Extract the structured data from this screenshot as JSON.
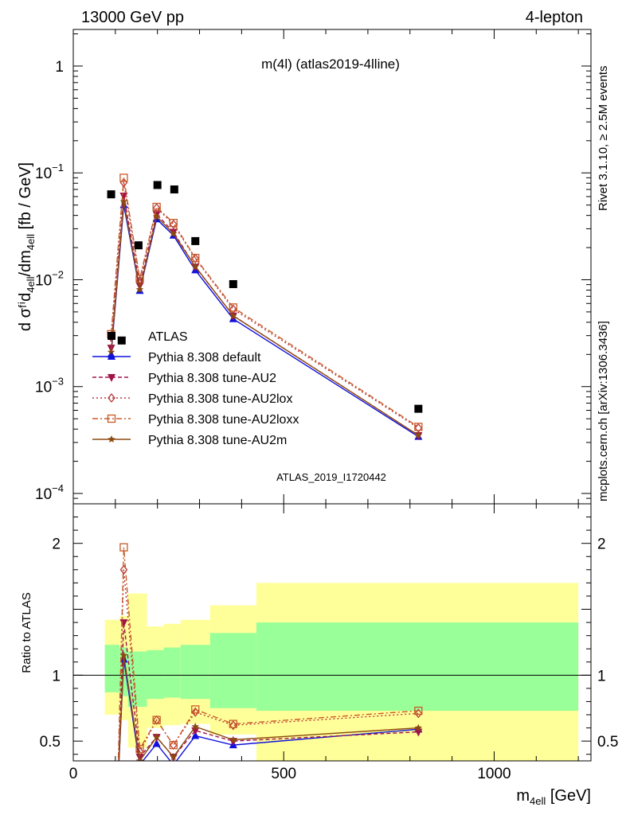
{
  "header": {
    "left": "13000 GeV pp",
    "right": "4-lepton"
  },
  "side_text": {
    "top": "Rivet 3.1.10, ≥ 2.5M events",
    "bottom": "mcplots.cern.ch [arXiv:1306.3436]"
  },
  "plot_title": "m(4l) (atlas2019-4lline)",
  "watermark": "ATLAS_2019_I1720442",
  "colors": {
    "data": "#000000",
    "default": "#1010dd",
    "AU2": "#a0134a",
    "AU2lox": "#b83a3a",
    "AU2loxx": "#c85a28",
    "AU2m": "#8b4a10",
    "band_inner": "#99ff99",
    "band_outer": "#ffff99"
  },
  "chart_data": {
    "type": "line",
    "x_label_main": "m",
    "x_label_sub": "4ell",
    "x_label_unit": "[GeV]",
    "xlim": [
      0,
      1230
    ],
    "x_ticks": [
      0,
      500,
      1000
    ],
    "top_panel": {
      "y_scale": "log",
      "ylim": [
        8e-05,
        2.2
      ],
      "y_label": "d σᶠⁱd",
      "y_ticks": [
        {
          "v": 1,
          "mant": "1",
          "exp": ""
        },
        {
          "v": 0.1,
          "mant": "10",
          "exp": "−1"
        },
        {
          "v": 0.01,
          "mant": "10",
          "exp": "−2"
        },
        {
          "v": 0.001,
          "mant": "10",
          "exp": "−3"
        },
        {
          "v": 0.0001,
          "mant": "10",
          "exp": "−4"
        }
      ],
      "data": {
        "name": "ATLAS",
        "x": [
          90,
          115,
          155,
          200,
          240,
          290,
          380,
          820
        ],
        "y": [
          0.063,
          0.0027,
          0.021,
          0.077,
          0.07,
          0.023,
          0.0091,
          0.00062
        ]
      },
      "series": [
        {
          "name": "Pythia 8.308 default",
          "key": "default",
          "marker": "triangle-up",
          "dash": "",
          "x": [
            90,
            120,
            158,
            198,
            238,
            290,
            380,
            820
          ],
          "y": [
            0.002,
            0.05,
            0.0079,
            0.037,
            0.026,
            0.0123,
            0.0043,
            0.00034
          ]
        },
        {
          "name": "Pythia 8.308 tune-AU2",
          "key": "AU2",
          "marker": "triangle-down",
          "dash": "5,3",
          "x": [
            90,
            120,
            158,
            198,
            238,
            290,
            380,
            820
          ],
          "y": [
            0.0023,
            0.061,
            0.0088,
            0.041,
            0.028,
            0.0132,
            0.0046,
            0.00035
          ]
        },
        {
          "name": "Pythia 8.308 tune-AU2lox",
          "key": "AU2lox",
          "marker": "diamond",
          "dash": "2,3",
          "x": [
            90,
            120,
            158,
            198,
            238,
            290,
            380,
            820
          ],
          "y": [
            0.0029,
            0.081,
            0.0098,
            0.047,
            0.033,
            0.0158,
            0.0053,
            0.00041
          ]
        },
        {
          "name": "Pythia 8.308 tune-AU2loxx",
          "key": "AU2loxx",
          "marker": "square",
          "dash": "7,3,2,3",
          "x": [
            90,
            120,
            158,
            198,
            238,
            290,
            380,
            820
          ],
          "y": [
            0.0031,
            0.09,
            0.0102,
            0.048,
            0.034,
            0.016,
            0.0055,
            0.00042
          ]
        },
        {
          "name": "Pythia 8.308 tune-AU2m",
          "key": "AU2m",
          "marker": "star",
          "dash": "",
          "x": [
            90,
            120,
            158,
            198,
            238,
            290,
            380,
            820
          ],
          "y": [
            0.0021,
            0.054,
            0.0081,
            0.039,
            0.027,
            0.0133,
            0.0046,
            0.00035
          ]
        }
      ]
    },
    "ratio_panel": {
      "y_label": "Ratio to ATLAS",
      "ylim": [
        0.35,
        2.3
      ],
      "y_ticks": [
        0.5,
        1,
        2
      ],
      "band_edges": [
        75,
        110,
        130,
        175,
        215,
        255,
        325,
        435,
        1200
      ],
      "band_inner": [
        [
          0.87,
          1.23
        ],
        [
          0.84,
          1.21
        ],
        [
          0.76,
          1.18
        ],
        [
          0.82,
          1.19
        ],
        [
          0.83,
          1.21
        ],
        [
          0.82,
          1.23
        ],
        [
          0.75,
          1.32
        ],
        [
          0.73,
          1.4
        ]
      ],
      "band_outer": [
        [
          0.7,
          1.42
        ],
        [
          0.66,
          1.45
        ],
        [
          0.45,
          1.62
        ],
        [
          0.6,
          1.37
        ],
        [
          0.62,
          1.39
        ],
        [
          0.63,
          1.42
        ],
        [
          0.55,
          1.53
        ],
        [
          0.2,
          1.7
        ]
      ],
      "series": [
        {
          "key": "default",
          "x": [
            105,
            120,
            158,
            198,
            238,
            290,
            380,
            820
          ],
          "y": [
            0.1,
            1.12,
            0.32,
            0.48,
            0.32,
            0.54,
            0.47,
            0.59
          ]
        },
        {
          "key": "AU2",
          "x": [
            105,
            120,
            158,
            198,
            238,
            290,
            380,
            820
          ],
          "y": [
            0.1,
            1.4,
            0.38,
            0.53,
            0.38,
            0.58,
            0.5,
            0.57
          ]
        },
        {
          "key": "AU2lox",
          "x": [
            105,
            120,
            158,
            198,
            238,
            290,
            380,
            820
          ],
          "y": [
            0.1,
            1.8,
            0.42,
            0.66,
            0.47,
            0.72,
            0.62,
            0.71
          ]
        },
        {
          "key": "AU2loxx",
          "x": [
            105,
            120,
            158,
            198,
            238,
            290,
            380,
            820
          ],
          "y": [
            0.1,
            1.97,
            0.44,
            0.66,
            0.47,
            0.74,
            0.63,
            0.73
          ]
        },
        {
          "key": "AU2m",
          "x": [
            105,
            120,
            158,
            198,
            238,
            290,
            380,
            820
          ],
          "y": [
            0.1,
            1.15,
            0.35,
            0.53,
            0.38,
            0.61,
            0.51,
            0.6
          ]
        }
      ]
    }
  }
}
